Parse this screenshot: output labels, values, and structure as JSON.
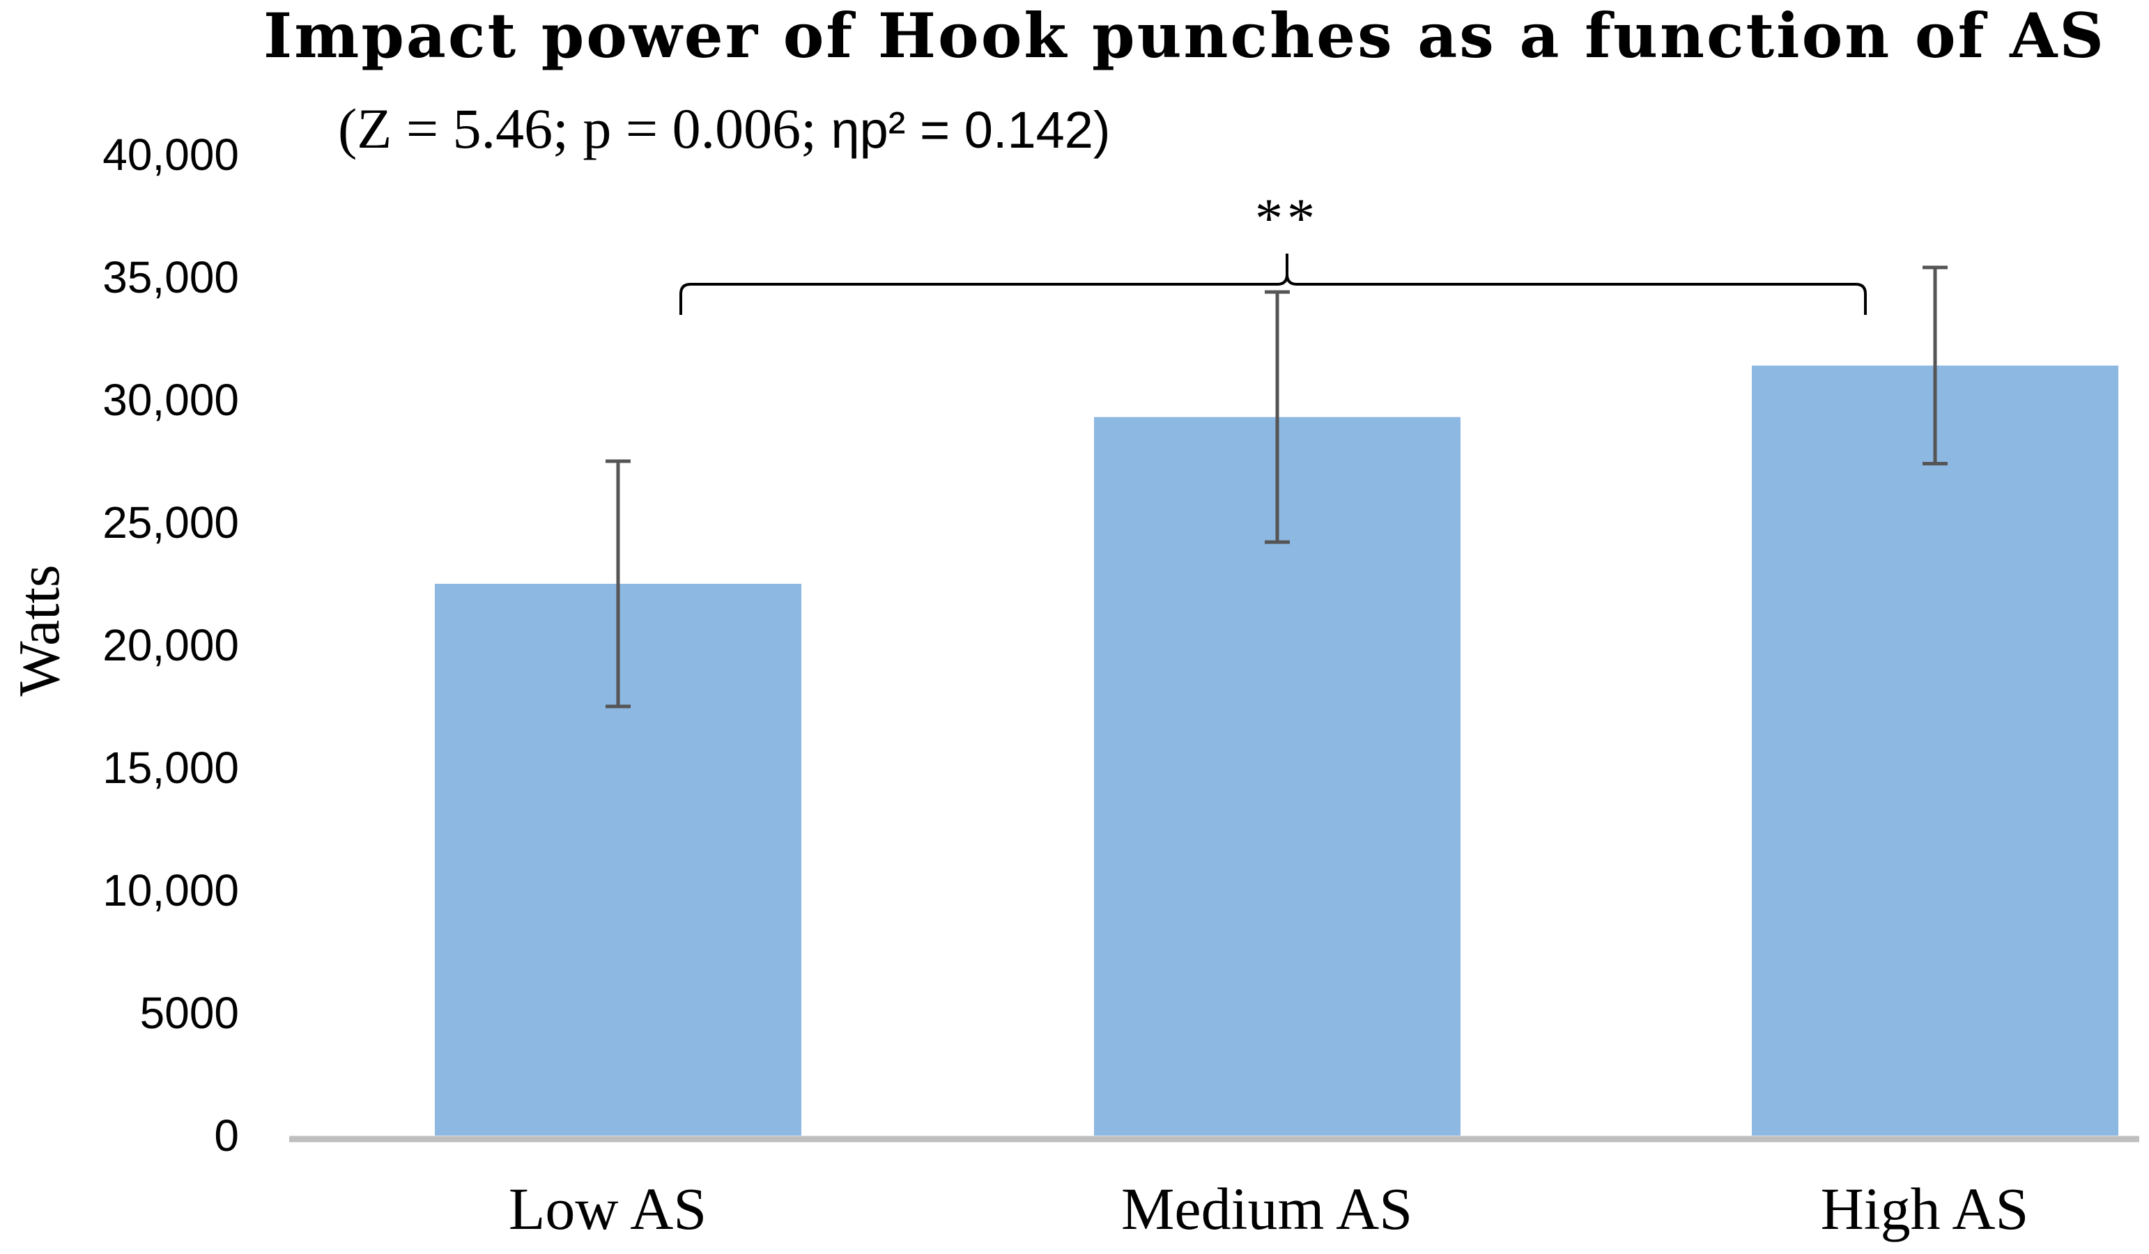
{
  "chart_data": {
    "type": "bar",
    "title": "Impact power of Hook punches as a function of AS",
    "subtitle": {
      "prefix": "(Z = 5.46; p = 0.006; ",
      "suffix": "ηp² = 0.142)"
    },
    "ylabel": "Watts",
    "xlabel": "",
    "categories": [
      "Low AS",
      "Medium AS",
      "High AS"
    ],
    "values": [
      22500,
      29300,
      31400
    ],
    "error": [
      5000,
      5100,
      4000
    ],
    "ylim": [
      0,
      40000
    ],
    "ytick_values": [
      0,
      5000,
      10000,
      15000,
      20000,
      25000,
      30000,
      35000,
      40000
    ],
    "ytick_labels": [
      "0",
      "5000",
      "10,000",
      "15,000",
      "20,000",
      "25,000",
      "30,000",
      "35,000",
      "40,000"
    ],
    "grid": false,
    "legend": "none",
    "annotations": [
      {
        "text": "**",
        "type": "bracket",
        "from_category": "Low AS",
        "to_category": "High AS"
      }
    ],
    "colors": {
      "bar": "#8db8e1",
      "error_bar": "#555555",
      "axis": "#bfbfbf",
      "bracket": "#000000"
    }
  }
}
